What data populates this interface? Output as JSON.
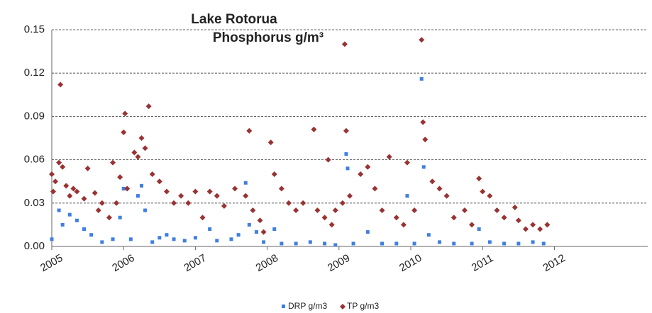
{
  "chart_data": {
    "type": "scatter",
    "title": "Lake Rotorua",
    "subtitle": "Phosphorus g/m³",
    "xlim": [
      2005,
      2013.3
    ],
    "xticks": [
      2005,
      2006,
      2007,
      2008,
      2009,
      2010,
      2011,
      2012
    ],
    "ylim": [
      0,
      0.15
    ],
    "yticks": [
      {
        "value": 0,
        "label": "0.00"
      },
      {
        "value": 0.03,
        "label": "0.03"
      },
      {
        "value": 0.06,
        "label": "0.06"
      },
      {
        "value": 0.09,
        "label": "0.09"
      },
      {
        "value": 0.12,
        "label": "0.12"
      },
      {
        "value": 0.15,
        "label": "0.15"
      }
    ],
    "grid": true,
    "legend": "bottom",
    "series": [
      {
        "name": "DRP g/m3",
        "color": "#3f7fe0",
        "marker": "square",
        "x": [
          2005.0,
          2005.1,
          2005.15,
          2005.25,
          2005.35,
          2005.45,
          2005.55,
          2005.7,
          2005.85,
          2005.95,
          2006.0,
          2006.1,
          2006.2,
          2006.25,
          2006.3,
          2006.4,
          2006.5,
          2006.6,
          2006.7,
          2006.85,
          2007.0,
          2007.2,
          2007.3,
          2007.5,
          2007.6,
          2007.7,
          2007.75,
          2007.85,
          2007.95,
          2008.1,
          2008.2,
          2008.4,
          2008.6,
          2008.8,
          2008.95,
          2009.1,
          2009.12,
          2009.2,
          2009.4,
          2009.6,
          2009.8,
          2009.95,
          2010.05,
          2010.15,
          2010.18,
          2010.25,
          2010.4,
          2010.6,
          2010.85,
          2010.95,
          2011.1,
          2011.3,
          2011.5,
          2011.7,
          2011.85
        ],
        "values": [
          0.005,
          0.025,
          0.015,
          0.022,
          0.018,
          0.012,
          0.008,
          0.003,
          0.005,
          0.02,
          0.04,
          0.005,
          0.035,
          0.042,
          0.025,
          0.003,
          0.006,
          0.008,
          0.005,
          0.004,
          0.006,
          0.012,
          0.004,
          0.005,
          0.008,
          0.044,
          0.015,
          0.01,
          0.003,
          0.012,
          0.002,
          0.002,
          0.003,
          0.002,
          0.001,
          0.064,
          0.054,
          0.002,
          0.01,
          0.002,
          0.002,
          0.035,
          0.002,
          0.116,
          0.055,
          0.008,
          0.003,
          0.002,
          0.002,
          0.012,
          0.003,
          0.002,
          0.002,
          0.003,
          0.002
        ]
      },
      {
        "name": "TP g/m3",
        "color": "#993333",
        "marker": "diamond",
        "x": [
          2005.0,
          2005.02,
          2005.05,
          2005.1,
          2005.12,
          2005.15,
          2005.2,
          2005.25,
          2005.3,
          2005.35,
          2005.45,
          2005.5,
          2005.6,
          2005.65,
          2005.7,
          2005.8,
          2005.85,
          2005.9,
          2005.95,
          2006.0,
          2006.02,
          2006.05,
          2006.15,
          2006.2,
          2006.25,
          2006.3,
          2006.35,
          2006.4,
          2006.5,
          2006.6,
          2006.7,
          2006.8,
          2006.9,
          2007.0,
          2007.1,
          2007.2,
          2007.3,
          2007.4,
          2007.55,
          2007.7,
          2007.75,
          2007.8,
          2007.9,
          2007.95,
          2008.05,
          2008.1,
          2008.2,
          2008.3,
          2008.4,
          2008.5,
          2008.65,
          2008.7,
          2008.8,
          2008.85,
          2008.9,
          2008.95,
          2009.05,
          2009.08,
          2009.1,
          2009.15,
          2009.3,
          2009.4,
          2009.5,
          2009.6,
          2009.7,
          2009.8,
          2009.9,
          2009.95,
          2010.05,
          2010.15,
          2010.17,
          2010.2,
          2010.3,
          2010.4,
          2010.5,
          2010.6,
          2010.75,
          2010.85,
          2010.95,
          2011.0,
          2011.1,
          2011.2,
          2011.3,
          2011.45,
          2011.5,
          2011.6,
          2011.7,
          2011.8,
          2011.9
        ],
        "values": [
          0.05,
          0.038,
          0.045,
          0.058,
          0.112,
          0.055,
          0.042,
          0.035,
          0.04,
          0.038,
          0.033,
          0.054,
          0.037,
          0.025,
          0.03,
          0.02,
          0.058,
          0.03,
          0.048,
          0.079,
          0.092,
          0.04,
          0.065,
          0.062,
          0.075,
          0.068,
          0.097,
          0.05,
          0.045,
          0.038,
          0.03,
          0.035,
          0.03,
          0.038,
          0.02,
          0.038,
          0.035,
          0.028,
          0.04,
          0.035,
          0.08,
          0.025,
          0.018,
          0.01,
          0.072,
          0.05,
          0.04,
          0.03,
          0.025,
          0.03,
          0.081,
          0.025,
          0.02,
          0.06,
          0.015,
          0.025,
          0.03,
          0.14,
          0.08,
          0.035,
          0.05,
          0.055,
          0.04,
          0.025,
          0.062,
          0.02,
          0.015,
          0.058,
          0.025,
          0.143,
          0.086,
          0.074,
          0.045,
          0.04,
          0.035,
          0.02,
          0.025,
          0.015,
          0.047,
          0.038,
          0.035,
          0.025,
          0.02,
          0.027,
          0.018,
          0.012,
          0.015,
          0.012,
          0.015
        ]
      }
    ]
  }
}
